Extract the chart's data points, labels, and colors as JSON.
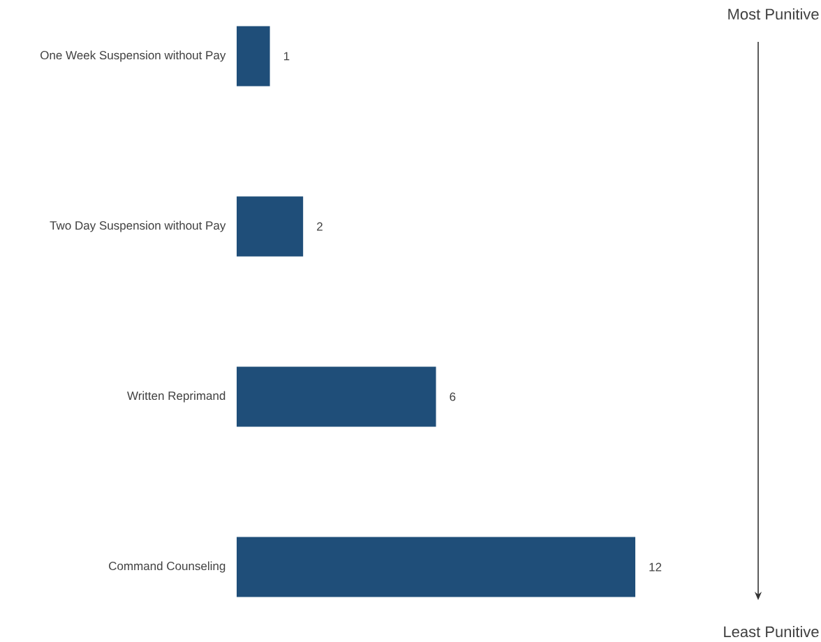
{
  "chart_data": {
    "type": "bar",
    "orientation": "horizontal",
    "categories": [
      "One Week Suspension without Pay",
      "Two Day Suspension without Pay",
      "Written Reprimand",
      "Command Counseling"
    ],
    "values": [
      1,
      2,
      6,
      12
    ],
    "color": "#1f4e79",
    "data_labels": true,
    "annotations": [
      "Most Punitive",
      "Least Punitive"
    ]
  }
}
